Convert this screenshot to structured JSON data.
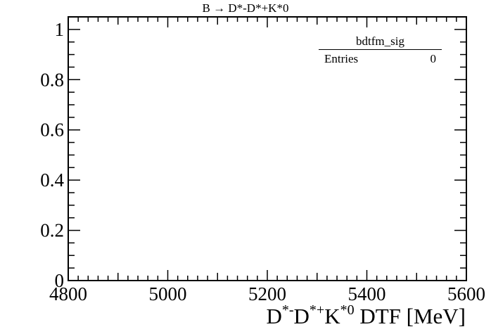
{
  "chart_data": {
    "type": "histogram",
    "title": "B → D*-D*+K*0",
    "xlabel_parts": [
      "D",
      "*-",
      "D",
      "*+",
      "K",
      "*0",
      " DTF [MeV]"
    ],
    "ylabel": "",
    "xlim": [
      4800,
      5600
    ],
    "ylim": [
      0,
      1.05
    ],
    "xticks": [
      4800,
      5000,
      5200,
      5400,
      5600
    ],
    "xtick_labels": [
      "4800",
      "5000",
      "5200",
      "5400",
      "5600"
    ],
    "yticks": [
      0,
      0.2,
      0.4,
      0.6,
      0.8,
      1
    ],
    "ytick_labels": [
      "0",
      "0.2",
      "0.4",
      "0.6",
      "0.8",
      "1"
    ],
    "series": [],
    "grid": false,
    "stats_box": {
      "name": "bdtfm_sig",
      "rows": [
        {
          "label": "Entries",
          "value": "0"
        }
      ],
      "placement": "top-right"
    }
  }
}
